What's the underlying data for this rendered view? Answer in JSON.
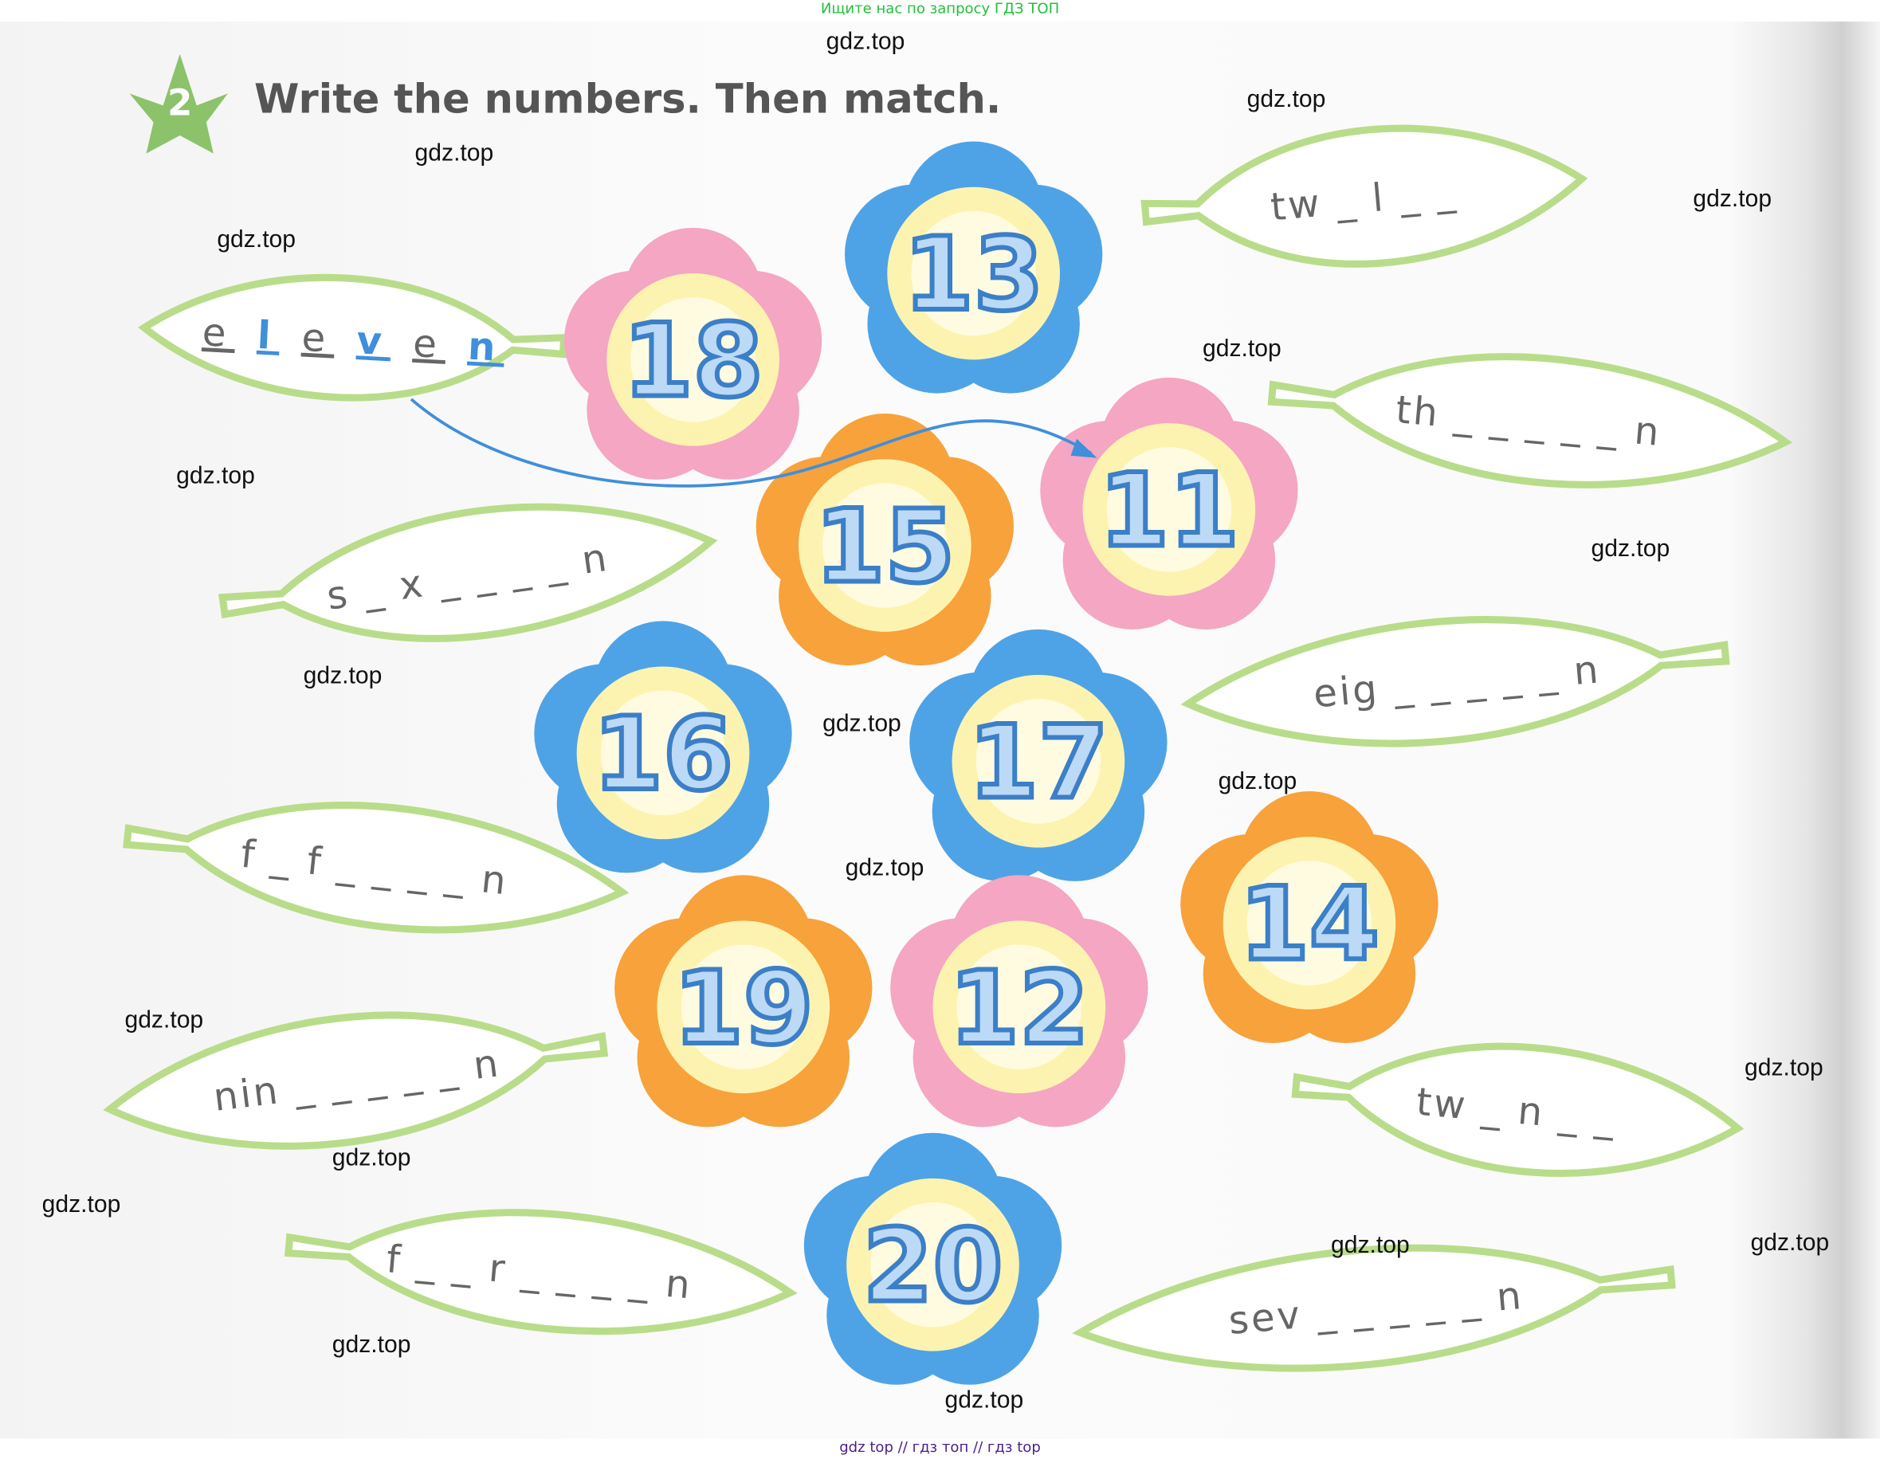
{
  "header": {
    "search_hint": "Ищите нас по запросу ГДЗ ТОП"
  },
  "exercise": {
    "number": "2",
    "title": "Write the numbers. Then match."
  },
  "colors": {
    "blue": "#4ea3e6",
    "pink": "#f4a6c3",
    "orange": "#f7a23b",
    "leaf": "#b9dc8a",
    "answer": "#3f8fdb",
    "star": "#8cc26a"
  },
  "flowers": [
    {
      "number": "13",
      "color": "blue"
    },
    {
      "number": "18",
      "color": "pink"
    },
    {
      "number": "11",
      "color": "pink"
    },
    {
      "number": "15",
      "color": "orange"
    },
    {
      "number": "16",
      "color": "blue"
    },
    {
      "number": "17",
      "color": "blue"
    },
    {
      "number": "14",
      "color": "orange"
    },
    {
      "number": "19",
      "color": "orange"
    },
    {
      "number": "12",
      "color": "pink"
    },
    {
      "number": "20",
      "color": "blue"
    }
  ],
  "leaves": [
    {
      "text": "e l e v e n",
      "filled_letters": [
        "l",
        "v",
        "n"
      ],
      "matched_to": "11"
    },
    {
      "text": "tw _ l _ _"
    },
    {
      "text": "th _ _ _ _ _ n"
    },
    {
      "text": "s _ x _ _ _ _ n"
    },
    {
      "text": "eig _ _ _ _ _ n"
    },
    {
      "text": "f _ f _ _ _ _ n"
    },
    {
      "text": "nin _ _ _ _ _ n"
    },
    {
      "text": "tw _ n _ _"
    },
    {
      "text": "f _ _ r _ _ _ _ n"
    },
    {
      "text": "sev _ _ _ _ _ n"
    }
  ],
  "watermark": "gdz.top",
  "footer": "gdz top  //  гдз топ  //  гдз top"
}
